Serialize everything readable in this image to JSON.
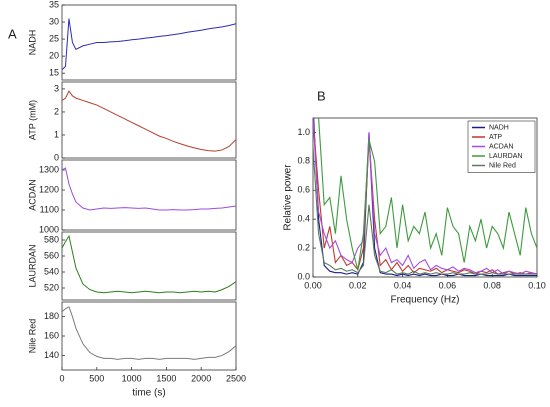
{
  "chart_data": [
    {
      "type": "line",
      "panel_label": "A",
      "ylabel": "NADH",
      "color": "#2b2bb5",
      "x": [
        0,
        50,
        100,
        150,
        200,
        300,
        400,
        500,
        600,
        700,
        800,
        900,
        1000,
        1100,
        1200,
        1300,
        1400,
        1500,
        1600,
        1700,
        1800,
        1900,
        2000,
        2100,
        2200,
        2300,
        2400,
        2500
      ],
      "values": [
        16,
        17,
        31,
        24,
        22,
        23,
        23.5,
        24,
        24,
        24.2,
        24.3,
        24.5,
        24.8,
        25,
        25.3,
        25.5,
        25.8,
        26,
        26.3,
        26.6,
        27,
        27.3,
        27.6,
        28,
        28.3,
        28.6,
        29,
        29.5
      ],
      "xlim": [
        0,
        2500
      ],
      "ylim": [
        13,
        35
      ],
      "yticks": [
        15,
        20,
        25,
        30,
        35
      ]
    },
    {
      "type": "line",
      "ylabel": "ATP (mM)",
      "color": "#b5402a",
      "x": [
        0,
        50,
        100,
        150,
        200,
        300,
        400,
        500,
        600,
        700,
        800,
        900,
        1000,
        1100,
        1200,
        1300,
        1400,
        1500,
        1600,
        1700,
        1800,
        1900,
        2000,
        2100,
        2200,
        2300,
        2400,
        2500
      ],
      "values": [
        2.5,
        2.6,
        2.9,
        2.7,
        2.6,
        2.5,
        2.4,
        2.3,
        2.15,
        2.0,
        1.85,
        1.7,
        1.55,
        1.4,
        1.25,
        1.1,
        0.95,
        0.85,
        0.72,
        0.62,
        0.52,
        0.44,
        0.37,
        0.32,
        0.3,
        0.35,
        0.5,
        0.8
      ],
      "xlim": [
        0,
        2500
      ],
      "ylim": [
        0,
        3.3
      ],
      "yticks": [
        0,
        1,
        2,
        3
      ]
    },
    {
      "type": "line",
      "ylabel": "ACDAN",
      "color": "#9b4be0",
      "x": [
        0,
        50,
        100,
        150,
        200,
        300,
        400,
        500,
        600,
        700,
        800,
        900,
        1000,
        1100,
        1200,
        1300,
        1400,
        1500,
        1600,
        1700,
        1800,
        1900,
        2000,
        2100,
        2200,
        2300,
        2400,
        2500
      ],
      "values": [
        1300,
        1310,
        1230,
        1180,
        1140,
        1110,
        1100,
        1105,
        1110,
        1108,
        1110,
        1112,
        1110,
        1108,
        1110,
        1105,
        1100,
        1100,
        1102,
        1100,
        1100,
        1102,
        1105,
        1105,
        1108,
        1110,
        1115,
        1120
      ],
      "xlim": [
        0,
        2500
      ],
      "ylim": [
        1000,
        1350
      ],
      "yticks": [
        1000,
        1100,
        1200,
        1300
      ]
    },
    {
      "type": "line",
      "ylabel": "LAURDAN",
      "color": "#2e7d1e",
      "x": [
        0,
        50,
        100,
        150,
        200,
        300,
        400,
        500,
        600,
        700,
        800,
        900,
        1000,
        1100,
        1200,
        1300,
        1400,
        1500,
        1600,
        1700,
        1800,
        1900,
        2000,
        2100,
        2200,
        2300,
        2400,
        2500
      ],
      "values": [
        570,
        578,
        585,
        565,
        545,
        525,
        518,
        515,
        514,
        515,
        516,
        515,
        514,
        515,
        516,
        515,
        514,
        515,
        515,
        514,
        515,
        516,
        515,
        516,
        515,
        518,
        522,
        528
      ],
      "xlim": [
        0,
        2500
      ],
      "ylim": [
        505,
        590
      ],
      "yticks": [
        520,
        540,
        560,
        580
      ]
    },
    {
      "type": "line",
      "ylabel": "Nile Red",
      "xlabel": "time (s)",
      "color": "#7a7a7a",
      "x": [
        0,
        50,
        100,
        150,
        200,
        300,
        400,
        500,
        600,
        700,
        800,
        900,
        1000,
        1100,
        1200,
        1300,
        1400,
        1500,
        1600,
        1700,
        1800,
        1900,
        2000,
        2100,
        2200,
        2300,
        2400,
        2500
      ],
      "values": [
        185,
        188,
        190,
        180,
        168,
        152,
        143,
        139,
        137,
        137,
        136,
        137,
        137,
        136,
        137,
        137,
        136,
        137,
        137,
        137,
        137,
        136,
        137,
        138,
        138,
        140,
        144,
        150
      ],
      "xlim": [
        0,
        2500
      ],
      "ylim": [
        125,
        195
      ],
      "yticks": [
        140,
        160,
        180
      ],
      "xticks": [
        0,
        500,
        1000,
        1500,
        2000,
        2500
      ]
    },
    {
      "type": "line",
      "panel_label": "B",
      "xlabel": "Frequency (Hz)",
      "ylabel": "Relative power",
      "legend": "upper right",
      "x": [
        0,
        0.0025,
        0.005,
        0.0075,
        0.01,
        0.0125,
        0.015,
        0.0175,
        0.02,
        0.0225,
        0.025,
        0.0275,
        0.03,
        0.0325,
        0.035,
        0.0375,
        0.04,
        0.0425,
        0.045,
        0.0475,
        0.05,
        0.0525,
        0.055,
        0.0575,
        0.06,
        0.0625,
        0.065,
        0.0675,
        0.07,
        0.0725,
        0.075,
        0.0775,
        0.08,
        0.0825,
        0.085,
        0.0875,
        0.09,
        0.0925,
        0.095,
        0.0975,
        0.1
      ],
      "series": [
        {
          "name": "NADH",
          "color": "#1a1a8c",
          "values": [
            1.2,
            0.4,
            0.08,
            0.04,
            0.03,
            0.03,
            0.02,
            0.03,
            0.02,
            0.1,
            1.0,
            0.2,
            0.03,
            0.02,
            0.02,
            0.01,
            0.02,
            0.01,
            0.02,
            0.01,
            0.02,
            0.01,
            0.01,
            0.02,
            0.01,
            0.01,
            0.02,
            0.01,
            0.01,
            0.01,
            0.02,
            0.01,
            0.01,
            0.01,
            0.01,
            0.02,
            0.01,
            0.01,
            0.01,
            0.01,
            0.01
          ]
        },
        {
          "name": "ATP",
          "color": "#c0392b",
          "values": [
            1.1,
            0.6,
            0.2,
            0.35,
            0.1,
            0.15,
            0.08,
            0.1,
            0.05,
            0.2,
            0.95,
            0.4,
            0.08,
            0.12,
            0.05,
            0.1,
            0.04,
            0.08,
            0.03,
            0.06,
            0.05,
            0.04,
            0.06,
            0.03,
            0.05,
            0.04,
            0.03,
            0.05,
            0.04,
            0.02,
            0.04,
            0.03,
            0.05,
            0.02,
            0.03,
            0.04,
            0.02,
            0.03,
            0.02,
            0.03,
            0.02
          ]
        },
        {
          "name": "ACDAN",
          "color": "#a64be3",
          "values": [
            1.1,
            0.45,
            0.3,
            0.2,
            0.25,
            0.15,
            0.12,
            0.1,
            0.2,
            0.25,
            1.0,
            0.3,
            0.15,
            0.2,
            0.1,
            0.12,
            0.08,
            0.15,
            0.06,
            0.1,
            0.12,
            0.05,
            0.08,
            0.06,
            0.05,
            0.07,
            0.04,
            0.06,
            0.05,
            0.03,
            0.04,
            0.06,
            0.03,
            0.05,
            0.02,
            0.04,
            0.03,
            0.02,
            0.04,
            0.03,
            0.02
          ]
        },
        {
          "name": "LAURDAN",
          "color": "#3e9a3e",
          "values": [
            1.2,
            1.1,
            0.5,
            0.55,
            0.3,
            0.7,
            0.4,
            0.2,
            0.05,
            0.3,
            0.95,
            0.8,
            0.3,
            0.35,
            0.55,
            0.2,
            0.5,
            0.25,
            0.35,
            0.3,
            0.45,
            0.2,
            0.3,
            0.15,
            0.48,
            0.35,
            0.3,
            0.1,
            0.35,
            0.25,
            0.4,
            0.2,
            0.35,
            0.3,
            0.2,
            0.45,
            0.3,
            0.15,
            0.48,
            0.3,
            0.2
          ]
        },
        {
          "name": "Nile Red",
          "color": "#5a7a5a",
          "values": [
            0.9,
            0.3,
            0.1,
            0.08,
            0.05,
            0.06,
            0.04,
            0.05,
            0.03,
            0.08,
            0.5,
            0.15,
            0.04,
            0.03,
            0.05,
            0.02,
            0.03,
            0.02,
            0.04,
            0.02,
            0.03,
            0.02,
            0.03,
            0.02,
            0.02,
            0.03,
            0.02,
            0.02,
            0.03,
            0.02,
            0.02,
            0.02,
            0.03,
            0.02,
            0.02,
            0.02,
            0.02,
            0.02,
            0.02,
            0.02,
            0.02
          ]
        }
      ],
      "xlim": [
        0,
        0.1
      ],
      "ylim": [
        0,
        1.1
      ],
      "xticks": [
        {
          "value": 0,
          "label": "0.00"
        },
        {
          "value": 0.02,
          "label": "0.02"
        },
        {
          "value": 0.04,
          "label": "0.04"
        },
        {
          "value": 0.06,
          "label": "0.06"
        },
        {
          "value": 0.08,
          "label": "0.08"
        },
        {
          "value": 0.1,
          "label": "0.10"
        }
      ],
      "yticks": [
        {
          "value": 0,
          "label": "0.0"
        },
        {
          "value": 0.2,
          "label": "0.2"
        },
        {
          "value": 0.4,
          "label": "0.4"
        },
        {
          "value": 0.6,
          "label": "0.6"
        },
        {
          "value": 0.8,
          "label": "0.8"
        },
        {
          "value": 1.0,
          "label": "1.0"
        }
      ]
    }
  ]
}
